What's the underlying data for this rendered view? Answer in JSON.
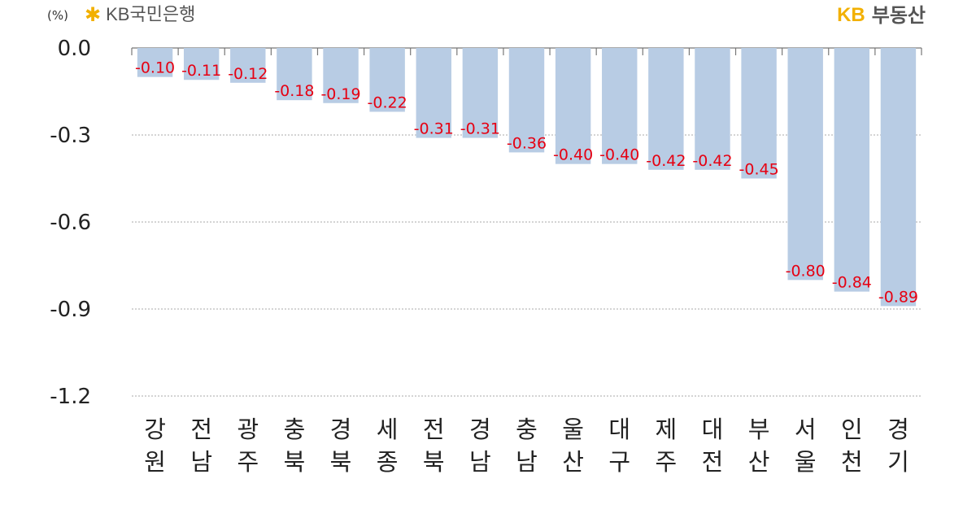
{
  "header": {
    "unit": "(%)",
    "left_logo_icon": "kb-star-icon",
    "left_logo_text": "KB국민은행",
    "right_logo_brand": "KB",
    "right_logo_name": "부동산"
  },
  "colors": {
    "bar": "#b8cce4",
    "data_label": "#e60012",
    "gridline": "#aaaaaa",
    "logo_accent": "#f2b000"
  },
  "chart_data": {
    "type": "bar",
    "categories": [
      [
        "강",
        "원"
      ],
      [
        "전",
        "남"
      ],
      [
        "광",
        "주"
      ],
      [
        "충",
        "북"
      ],
      [
        "경",
        "북"
      ],
      [
        "세",
        "종"
      ],
      [
        "전",
        "북"
      ],
      [
        "경",
        "남"
      ],
      [
        "충",
        "남"
      ],
      [
        "울",
        "산"
      ],
      [
        "대",
        "구"
      ],
      [
        "제",
        "주"
      ],
      [
        "대",
        "전"
      ],
      [
        "부",
        "산"
      ],
      [
        "서",
        "울"
      ],
      [
        "인",
        "천"
      ],
      [
        "경",
        "기"
      ]
    ],
    "values": [
      -0.1,
      -0.11,
      -0.12,
      -0.18,
      -0.19,
      -0.22,
      -0.31,
      -0.31,
      -0.36,
      -0.4,
      -0.4,
      -0.42,
      -0.42,
      -0.45,
      -0.8,
      -0.84,
      -0.89
    ],
    "data_labels": [
      "-0.10",
      "-0.11",
      "-0.12",
      "-0.18",
      "-0.19",
      "-0.22",
      "-0.31",
      "-0.31",
      "-0.36",
      "-0.40",
      "-0.40",
      "-0.42",
      "-0.42",
      "-0.45",
      "-0.80",
      "-0.84",
      "-0.89"
    ],
    "yticks": [
      "0.0",
      "-0.3",
      "-0.6",
      "-0.9",
      "-1.2"
    ],
    "ytick_values": [
      0.0,
      -0.3,
      -0.6,
      -0.9,
      -1.2
    ],
    "ylim": [
      -1.2,
      0.0
    ],
    "grid": true,
    "title": "",
    "xlabel": "",
    "ylabel": "(%)"
  }
}
